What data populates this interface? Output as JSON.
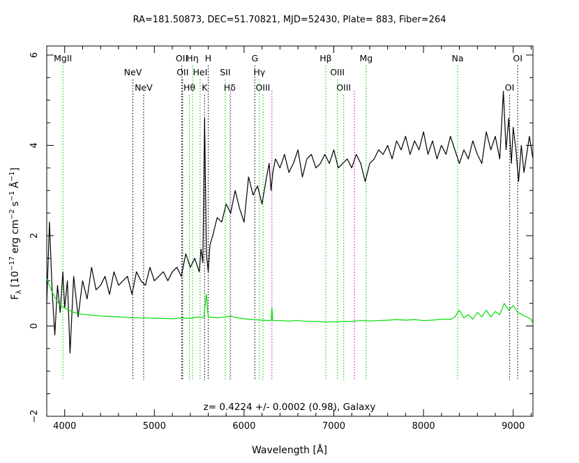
{
  "chart_data": {
    "type": "line",
    "title": "RA=181.50873, DEC=51.70821, MJD=52430, Plate=  883, Fiber=264",
    "xlabel": "Wavelength [Å]",
    "ylabel_parts": {
      "f": "F",
      "f_sub": "λ",
      "open": "[10",
      "exp1": "−17",
      "unit1": "erg cm",
      "exp2": "−2",
      "unit2": "s",
      "exp3": "−1",
      "unit3": "Å",
      "exp4": "−1",
      "close": "]"
    },
    "xlim": [
      3800,
      9220
    ],
    "ylim": [
      -2,
      6.2
    ],
    "x_ticks": [
      4000,
      5000,
      6000,
      7000,
      8000,
      9000
    ],
    "y_ticks": [
      -2,
      0,
      2,
      4,
      6
    ],
    "annotation": "z= 0.4224 +/- 0.0002 (0.98), Galaxy",
    "series": [
      {
        "color": "#000000",
        "x": [
          3800,
          3830,
          3860,
          3890,
          3920,
          3950,
          3980,
          4000,
          4030,
          4060,
          4100,
          4150,
          4200,
          4250,
          4300,
          4350,
          4400,
          4450,
          4500,
          4550,
          4600,
          4650,
          4700,
          4750,
          4800,
          4850,
          4900,
          4950,
          5000,
          5050,
          5100,
          5150,
          5200,
          5250,
          5300,
          5350,
          5400,
          5450,
          5500,
          5520,
          5540,
          5560,
          5580,
          5600,
          5620,
          5650,
          5700,
          5750,
          5800,
          5850,
          5900,
          5950,
          6000,
          6050,
          6100,
          6150,
          6200,
          6250,
          6280,
          6300,
          6320,
          6350,
          6400,
          6450,
          6500,
          6550,
          6600,
          6650,
          6700,
          6750,
          6800,
          6850,
          6900,
          6950,
          7000,
          7050,
          7100,
          7150,
          7200,
          7250,
          7300,
          7350,
          7400,
          7450,
          7500,
          7550,
          7600,
          7650,
          7700,
          7750,
          7800,
          7850,
          7900,
          7950,
          8000,
          8050,
          8100,
          8150,
          8200,
          8250,
          8300,
          8350,
          8400,
          8450,
          8500,
          8550,
          8600,
          8650,
          8700,
          8750,
          8800,
          8850,
          8890,
          8920,
          8950,
          8980,
          9000,
          9030,
          9060,
          9090,
          9120,
          9150,
          9180,
          9220
        ],
        "y": [
          0.5,
          2.3,
          0.8,
          -0.2,
          0.9,
          0.3,
          1.2,
          0.4,
          1.0,
          -0.6,
          1.1,
          0.2,
          1.0,
          0.6,
          1.3,
          0.8,
          0.9,
          1.1,
          0.7,
          1.2,
          0.9,
          1.0,
          1.1,
          0.7,
          1.2,
          1.0,
          0.9,
          1.3,
          1.0,
          1.1,
          1.2,
          1.0,
          1.2,
          1.3,
          1.1,
          1.6,
          1.3,
          1.5,
          1.2,
          1.7,
          1.4,
          4.6,
          1.6,
          1.2,
          1.8,
          2.0,
          2.4,
          2.3,
          2.7,
          2.5,
          3.0,
          2.6,
          2.3,
          3.3,
          2.9,
          3.1,
          2.7,
          3.3,
          3.6,
          3.0,
          3.4,
          3.7,
          3.5,
          3.8,
          3.4,
          3.6,
          3.9,
          3.3,
          3.7,
          3.8,
          3.5,
          3.6,
          3.8,
          3.6,
          3.9,
          3.5,
          3.6,
          3.7,
          3.5,
          3.8,
          3.6,
          3.2,
          3.6,
          3.7,
          3.9,
          3.8,
          4.0,
          3.7,
          4.1,
          3.9,
          4.2,
          3.8,
          4.1,
          3.9,
          4.3,
          3.8,
          4.1,
          3.7,
          4.0,
          3.8,
          4.2,
          3.9,
          3.6,
          3.9,
          3.7,
          4.1,
          3.8,
          3.6,
          4.3,
          3.9,
          4.2,
          3.7,
          5.2,
          3.9,
          4.6,
          3.6,
          4.4,
          3.9,
          3.2,
          4.0,
          3.4,
          3.8,
          4.2,
          3.7
        ]
      },
      {
        "color": "#00dd00",
        "x": [
          3800,
          3850,
          3900,
          3950,
          4000,
          4050,
          4100,
          4200,
          4300,
          4400,
          4500,
          4600,
          4700,
          4800,
          4900,
          5000,
          5100,
          5200,
          5300,
          5400,
          5500,
          5550,
          5580,
          5600,
          5700,
          5800,
          5850,
          5900,
          6000,
          6100,
          6200,
          6300,
          6310,
          6320,
          6400,
          6500,
          6600,
          6700,
          6800,
          6900,
          7000,
          7100,
          7200,
          7300,
          7400,
          7500,
          7600,
          7700,
          7800,
          7900,
          8000,
          8100,
          8200,
          8300,
          8350,
          8400,
          8450,
          8500,
          8550,
          8600,
          8650,
          8700,
          8750,
          8800,
          8850,
          8900,
          8950,
          9000,
          9050,
          9100,
          9150,
          9200,
          9220
        ],
        "y": [
          1.05,
          0.8,
          0.6,
          0.45,
          0.4,
          0.35,
          0.3,
          0.26,
          0.24,
          0.22,
          0.21,
          0.2,
          0.19,
          0.18,
          0.18,
          0.17,
          0.17,
          0.16,
          0.18,
          0.17,
          0.2,
          0.18,
          0.7,
          0.2,
          0.18,
          0.2,
          0.22,
          0.19,
          0.16,
          0.14,
          0.13,
          0.12,
          0.4,
          0.12,
          0.12,
          0.11,
          0.12,
          0.1,
          0.1,
          0.09,
          0.09,
          0.1,
          0.1,
          0.12,
          0.11,
          0.12,
          0.13,
          0.14,
          0.13,
          0.14,
          0.12,
          0.13,
          0.15,
          0.14,
          0.2,
          0.35,
          0.18,
          0.25,
          0.15,
          0.3,
          0.2,
          0.35,
          0.2,
          0.32,
          0.25,
          0.5,
          0.35,
          0.45,
          0.3,
          0.25,
          0.2,
          0.15,
          0.05
        ]
      }
    ],
    "lines": [
      {
        "label": "MgII",
        "wave": 3980,
        "row": 1,
        "color": "#00cc00"
      },
      {
        "label": "NeV",
        "wave": 4760,
        "row": 2,
        "color": "#000000"
      },
      {
        "label": "NeV",
        "wave": 4880,
        "row": 3,
        "color": "#000000"
      },
      {
        "label": "OII",
        "wave": 5305,
        "row": 1,
        "color": "#000000"
      },
      {
        "label": "OII",
        "wave": 5315,
        "row": 2,
        "color": "#000000"
      },
      {
        "label": "Hη",
        "wave": 5425,
        "row": 1,
        "color": "#00cc00"
      },
      {
        "label": "Hθ",
        "wave": 5390,
        "row": 3,
        "color": "#00cc00"
      },
      {
        "label": "H",
        "wave": 5600,
        "row": 1,
        "color": "#000000"
      },
      {
        "label": "HeI",
        "wave": 5510,
        "row": 2,
        "color": "#00cc00"
      },
      {
        "label": "K",
        "wave": 5560,
        "row": 3,
        "color": "#000000"
      },
      {
        "label": "SII",
        "wave": 5790,
        "row": 2,
        "color": "#00cc00"
      },
      {
        "label": "Hδ",
        "wave": 5840,
        "row": 3,
        "color": "#00cc00"
      },
      {
        "label": "G",
        "wave": 6120,
        "row": 1,
        "color": "#000000"
      },
      {
        "label": "Hγ",
        "wave": 6170,
        "row": 2,
        "color": "#00cc00"
      },
      {
        "label": "OIII",
        "wave": 6210,
        "row": 3,
        "color": "#00cc00"
      },
      {
        "label": "Hβ",
        "wave": 6910,
        "row": 1,
        "color": "#00cc00"
      },
      {
        "label": "OIII",
        "wave": 7040,
        "row": 2,
        "color": "#00cc00"
      },
      {
        "label": "OIII",
        "wave": 7110,
        "row": 3,
        "color": "#00cc00"
      },
      {
        "label": "Mg",
        "wave": 7360,
        "row": 1,
        "color": "#00cc00"
      },
      {
        "label": "Na",
        "wave": 8380,
        "row": 1,
        "color": "#00cc00"
      },
      {
        "label": "OI",
        "wave": 9050,
        "row": 1,
        "color": "#000000"
      },
      {
        "label": "OI",
        "wave": 8960,
        "row": 3,
        "color": "#000000"
      }
    ],
    "magenta_lines": [
      5850,
      6310,
      7230
    ],
    "grid": false,
    "legend": "none"
  }
}
